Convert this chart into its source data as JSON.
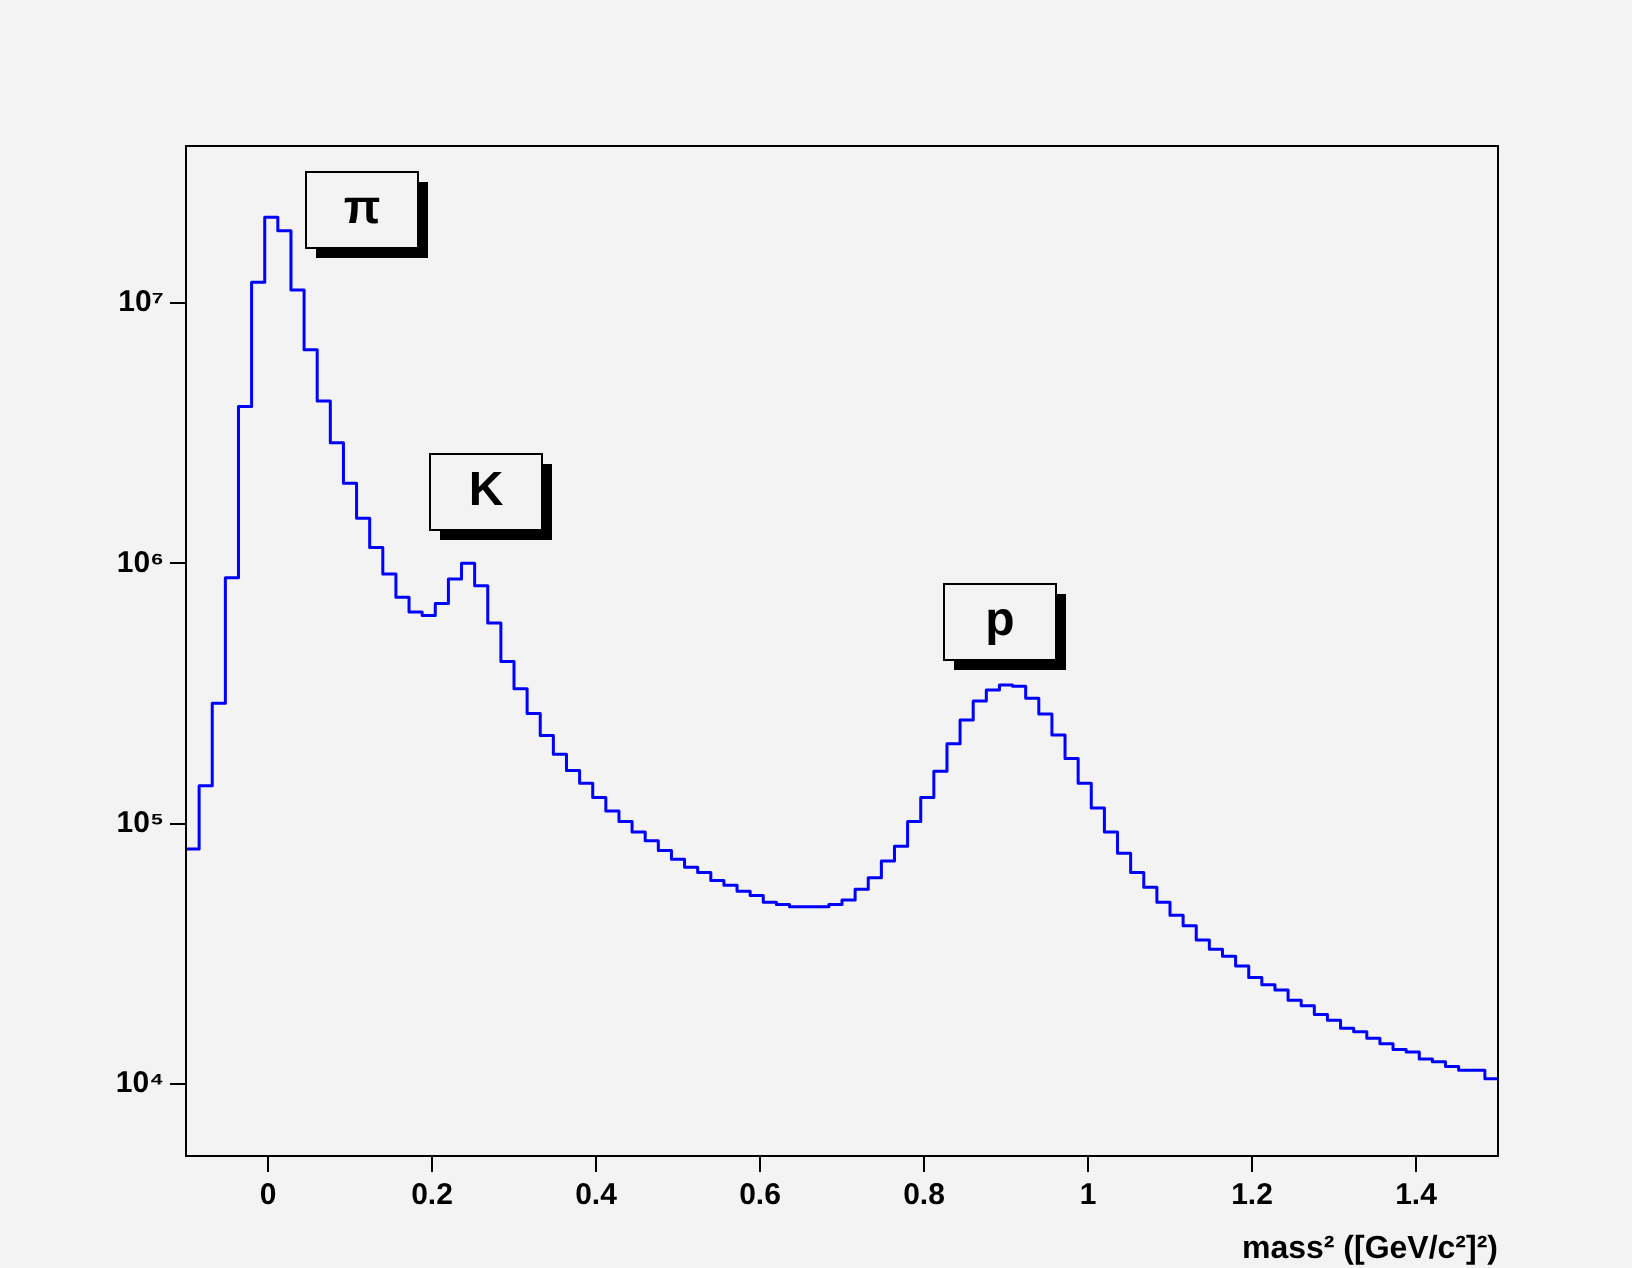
{
  "chart_data": {
    "type": "histogram",
    "xlabel": "mass² ([GeV/c²]²)",
    "color": "#0000ff",
    "log": "y",
    "bins": [
      -0.1,
      -0.084,
      -0.068,
      -0.052,
      -0.036,
      -0.02,
      -0.004,
      0.012,
      0.028,
      0.044,
      0.06,
      0.076,
      0.092,
      0.108,
      0.124,
      0.14,
      0.156,
      0.172,
      0.188,
      0.204,
      0.22,
      0.236,
      0.252,
      0.268,
      0.284,
      0.3,
      0.316,
      0.332,
      0.348,
      0.364,
      0.38,
      0.396,
      0.412,
      0.428,
      0.444,
      0.46,
      0.476,
      0.492,
      0.508,
      0.524,
      0.54,
      0.556,
      0.572,
      0.588,
      0.604,
      0.62,
      0.636,
      0.652,
      0.668,
      0.684,
      0.7,
      0.716,
      0.732,
      0.748,
      0.764,
      0.78,
      0.796,
      0.812,
      0.828,
      0.844,
      0.86,
      0.876,
      0.892,
      0.908,
      0.924,
      0.94,
      0.956,
      0.972,
      0.988,
      1.004,
      1.02,
      1.036,
      1.052,
      1.068,
      1.084,
      1.1,
      1.116,
      1.132,
      1.148,
      1.164,
      1.18,
      1.196,
      1.212,
      1.228,
      1.244,
      1.26,
      1.276,
      1.292,
      1.308,
      1.324,
      1.34,
      1.356,
      1.372,
      1.388,
      1.404,
      1.42,
      1.436,
      1.452,
      1.468,
      1.484,
      1.5
    ],
    "values": [
      80000,
      140000,
      290000,
      880000,
      4000000,
      12000000,
      21300000,
      18900000,
      11200000,
      6600000,
      4200000,
      2900000,
      2030000,
      1490000,
      1150000,
      910000,
      740000,
      650000,
      630000,
      700000,
      870000,
      1000000,
      820000,
      590000,
      420000,
      330000,
      265000,
      218000,
      185000,
      160000,
      143000,
      126000,
      112000,
      102000,
      93000,
      86000,
      79000,
      73000,
      68000,
      65000,
      60500,
      58000,
      55000,
      53000,
      50000,
      49000,
      48000,
      48000,
      48000,
      49000,
      51000,
      56000,
      62000,
      72000,
      82000,
      102000,
      126000,
      159000,
      203000,
      250000,
      296000,
      326000,
      341000,
      337000,
      303000,
      264000,
      219000,
      178000,
      143000,
      115000,
      93000,
      77000,
      65000,
      57000,
      50000,
      44500,
      40600,
      35800,
      33000,
      31000,
      28400,
      25700,
      24100,
      23000,
      21000,
      20000,
      18500,
      17600,
      16400,
      15900,
      15000,
      14300,
      13600,
      13300,
      12500,
      12200,
      11700,
      11300,
      11300,
      10500
    ],
    "xlim": [
      -0.1,
      1.5
    ],
    "xticks": [
      0,
      0.2,
      0.4,
      0.6,
      0.8,
      1,
      1.2,
      1.4
    ],
    "ylim": [
      5300,
      40000000
    ],
    "yticks": [
      {
        "value": 10000,
        "label": "10⁴"
      },
      {
        "value": 100000,
        "label": "10⁵"
      },
      {
        "value": 1000000,
        "label": "10⁶"
      },
      {
        "value": 10000000,
        "label": "10⁷"
      }
    ],
    "annotations": [
      "π",
      "K",
      "p"
    ]
  }
}
